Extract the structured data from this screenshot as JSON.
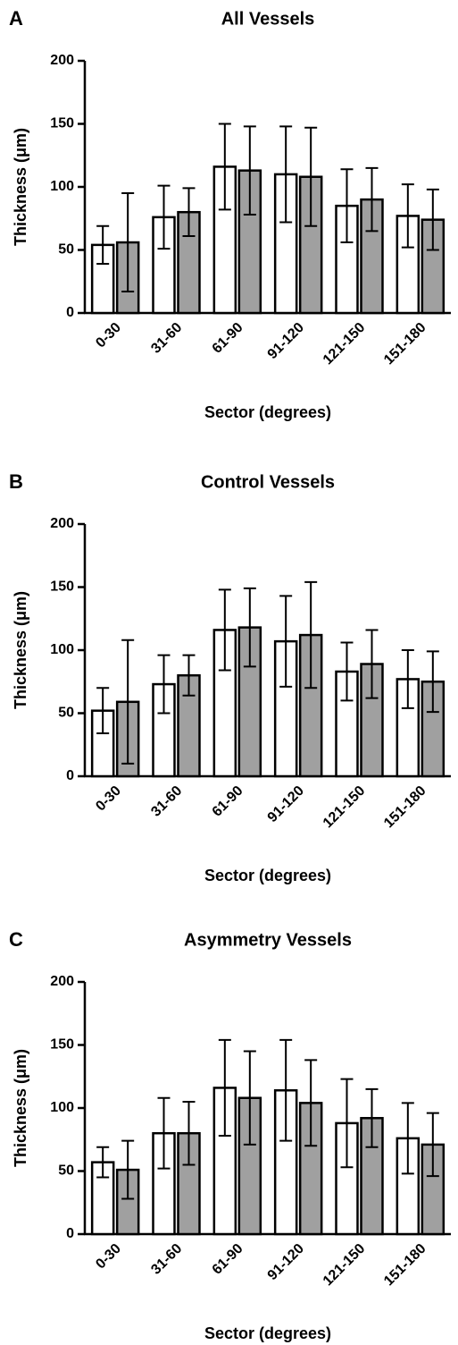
{
  "chart_data": [
    {
      "type": "bar",
      "panel": "A",
      "title": "All Vessels",
      "x_label": "Sector  (degrees)",
      "y_label": "Thickness (μm)",
      "categories": [
        "0-30",
        "31-60",
        "61-90",
        "91-120",
        "121-150",
        "151-180"
      ],
      "series": [
        {
          "color": "#ffffff",
          "values": [
            54,
            76,
            116,
            110,
            85,
            77
          ],
          "errors": [
            15,
            25,
            34,
            38,
            29,
            25
          ]
        },
        {
          "color": "#a0a0a0",
          "values": [
            56,
            80,
            113,
            108,
            90,
            74
          ],
          "errors": [
            39,
            19,
            35,
            39,
            25,
            24
          ]
        }
      ],
      "ylim": [
        0,
        200
      ],
      "yticks": [
        0,
        50,
        100,
        150,
        200
      ]
    },
    {
      "type": "bar",
      "panel": "B",
      "title": "Control Vessels",
      "x_label": "Sector  (degrees)",
      "y_label": "Thickness (μm)",
      "categories": [
        "0-30",
        "31-60",
        "61-90",
        "91-120",
        "121-150",
        "151-180"
      ],
      "series": [
        {
          "color": "#ffffff",
          "values": [
            52,
            73,
            116,
            107,
            83,
            77
          ],
          "errors": [
            18,
            23,
            32,
            36,
            23,
            23
          ]
        },
        {
          "color": "#a0a0a0",
          "values": [
            59,
            80,
            118,
            112,
            89,
            75
          ],
          "errors": [
            49,
            16,
            31,
            42,
            27,
            24
          ]
        }
      ],
      "ylim": [
        0,
        200
      ],
      "yticks": [
        0,
        50,
        100,
        150,
        200
      ]
    },
    {
      "type": "bar",
      "panel": "C",
      "title": "Asymmetry Vessels",
      "x_label": "Sector  (degrees)",
      "y_label": "Thickness (μm)",
      "categories": [
        "0-30",
        "31-60",
        "61-90",
        "91-120",
        "121-150",
        "151-180"
      ],
      "series": [
        {
          "color": "#ffffff",
          "values": [
            57,
            80,
            116,
            114,
            88,
            76
          ],
          "errors": [
            12,
            28,
            38,
            40,
            35,
            28
          ]
        },
        {
          "color": "#a0a0a0",
          "values": [
            51,
            80,
            108,
            104,
            92,
            71
          ],
          "errors": [
            23,
            25,
            37,
            34,
            23,
            25
          ]
        }
      ],
      "ylim": [
        0,
        200
      ],
      "yticks": [
        0,
        50,
        100,
        150,
        200
      ]
    }
  ]
}
